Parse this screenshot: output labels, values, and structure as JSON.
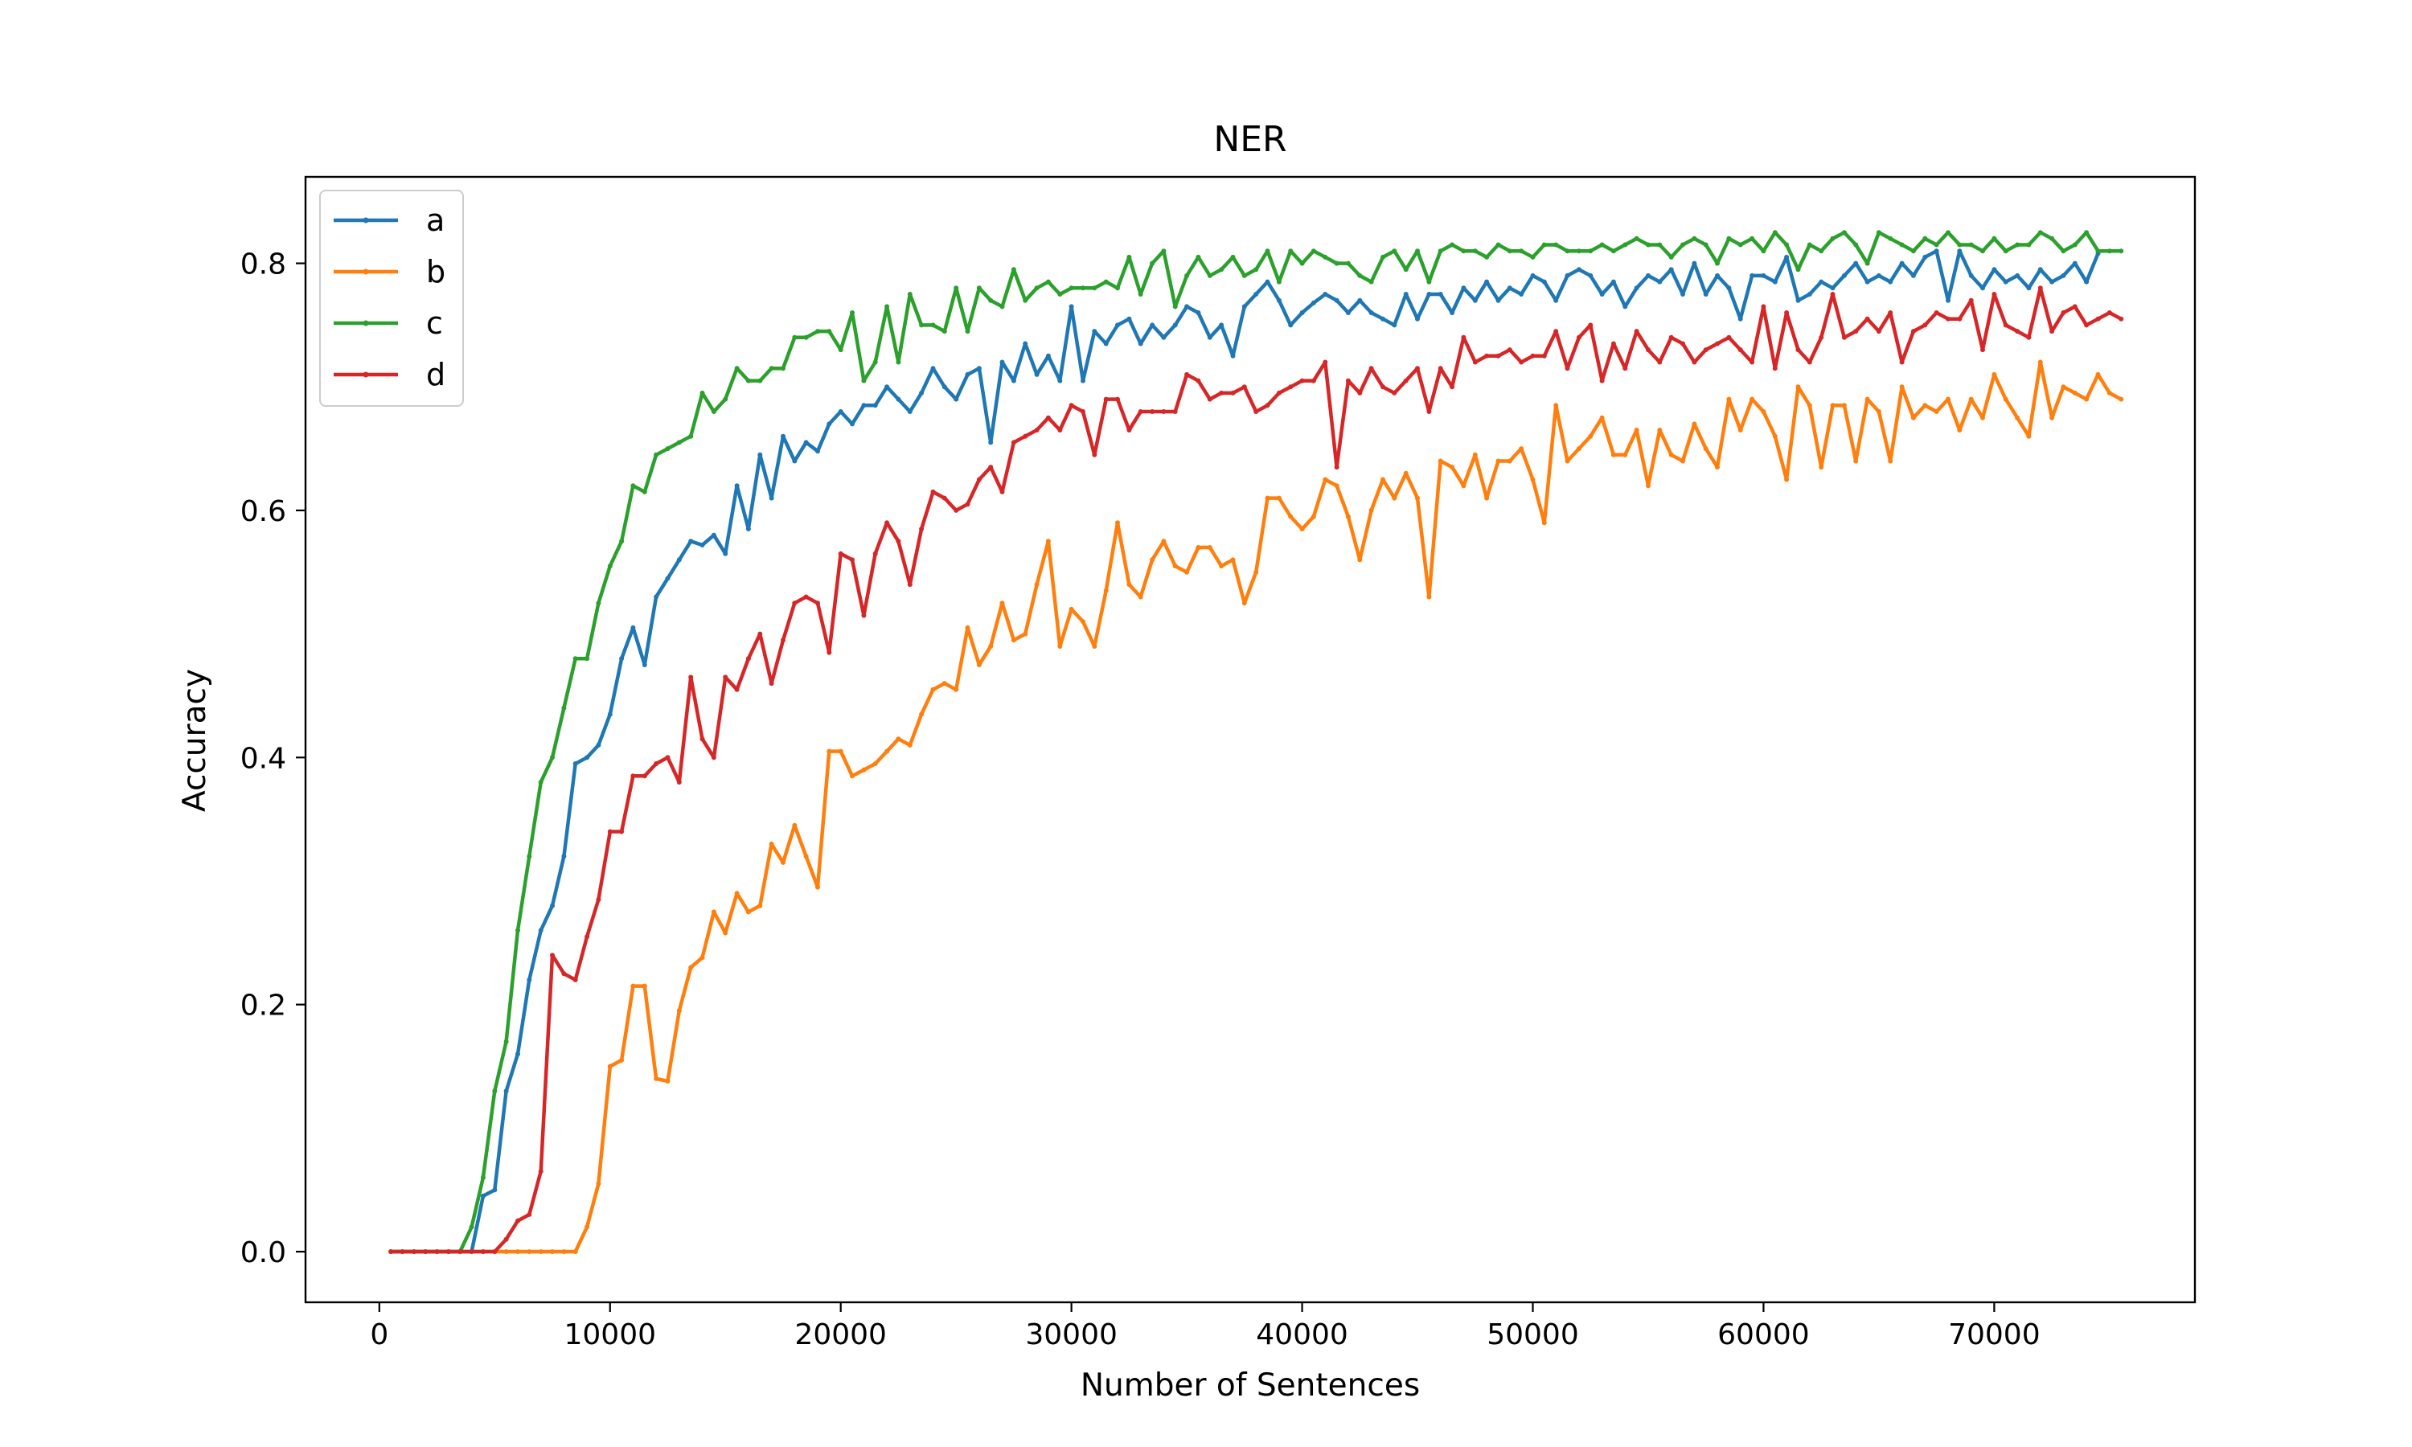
{
  "chart_data": {
    "type": "line",
    "title": "NER",
    "xlabel": "Number of Sentences",
    "ylabel": "Accuracy",
    "xlim": [
      -3200,
      78700
    ],
    "ylim": [
      -0.041,
      0.87
    ],
    "xticks": [
      0,
      10000,
      20000,
      30000,
      40000,
      50000,
      60000,
      70000
    ],
    "xtick_labels": [
      "0",
      "10000",
      "20000",
      "30000",
      "40000",
      "50000",
      "60000",
      "70000"
    ],
    "yticks": [
      0.0,
      0.2,
      0.4,
      0.6,
      0.8
    ],
    "ytick_labels": [
      "0.0",
      "0.2",
      "0.4",
      "0.6",
      "0.8"
    ],
    "grid": false,
    "legend_position": "top-left",
    "x_start": 500,
    "x_step": 500,
    "series": [
      {
        "name": "a",
        "color": "#1f77b4",
        "values": [
          0,
          0,
          0,
          0,
          0,
          0,
          0,
          0,
          0.045,
          0.05,
          0.13,
          0.16,
          0.22,
          0.26,
          0.28,
          0.32,
          0.395,
          0.4,
          0.41,
          0.435,
          0.48,
          0.505,
          0.475,
          0.53,
          0.545,
          0.56,
          0.575,
          0.572,
          0.58,
          0.565,
          0.62,
          0.585,
          0.645,
          0.61,
          0.66,
          0.64,
          0.655,
          0.648,
          0.67,
          0.68,
          0.67,
          0.685,
          0.685,
          0.7,
          0.69,
          0.68,
          0.695,
          0.715,
          0.7,
          0.69,
          0.71,
          0.715,
          0.655,
          0.72,
          0.705,
          0.735,
          0.71,
          0.725,
          0.705,
          0.765,
          0.705,
          0.745,
          0.735,
          0.75,
          0.755,
          0.735,
          0.75,
          0.74,
          0.75,
          0.765,
          0.76,
          0.74,
          0.75,
          0.725,
          0.765,
          0.775,
          0.785,
          0.77,
          0.75,
          0.76,
          0.768,
          0.775,
          0.77,
          0.76,
          0.77,
          0.76,
          0.755,
          0.75,
          0.775,
          0.755,
          0.775,
          0.775,
          0.76,
          0.78,
          0.77,
          0.785,
          0.77,
          0.78,
          0.775,
          0.79,
          0.785,
          0.77,
          0.79,
          0.795,
          0.79,
          0.775,
          0.785,
          0.765,
          0.78,
          0.79,
          0.785,
          0.795,
          0.775,
          0.8,
          0.775,
          0.79,
          0.78,
          0.755,
          0.79,
          0.79,
          0.785,
          0.805,
          0.77,
          0.775,
          0.785,
          0.78,
          0.79,
          0.8,
          0.785,
          0.79,
          0.785,
          0.8,
          0.79,
          0.805,
          0.81,
          0.77,
          0.81,
          0.79,
          0.78,
          0.795,
          0.785,
          0.79,
          0.78,
          0.795,
          0.785,
          0.79,
          0.8,
          0.785,
          0.808
        ]
      },
      {
        "name": "b",
        "color": "#ff7f0e",
        "values": [
          0,
          0,
          0,
          0,
          0,
          0,
          0,
          0,
          0,
          0,
          0,
          0,
          0,
          0,
          0,
          0,
          0,
          0.02,
          0.055,
          0.15,
          0.155,
          0.215,
          0.215,
          0.14,
          0.138,
          0.195,
          0.23,
          0.238,
          0.275,
          0.258,
          0.29,
          0.275,
          0.28,
          0.33,
          0.315,
          0.345,
          0.32,
          0.295,
          0.405,
          0.405,
          0.385,
          0.39,
          0.395,
          0.405,
          0.415,
          0.41,
          0.435,
          0.455,
          0.46,
          0.455,
          0.505,
          0.475,
          0.49,
          0.525,
          0.495,
          0.5,
          0.54,
          0.575,
          0.49,
          0.52,
          0.51,
          0.49,
          0.535,
          0.59,
          0.54,
          0.53,
          0.56,
          0.575,
          0.555,
          0.55,
          0.57,
          0.57,
          0.555,
          0.56,
          0.525,
          0.55,
          0.61,
          0.61,
          0.595,
          0.585,
          0.595,
          0.625,
          0.62,
          0.595,
          0.56,
          0.6,
          0.625,
          0.61,
          0.63,
          0.61,
          0.53,
          0.64,
          0.635,
          0.62,
          0.645,
          0.61,
          0.64,
          0.64,
          0.65,
          0.625,
          0.59,
          0.685,
          0.64,
          0.65,
          0.66,
          0.675,
          0.645,
          0.645,
          0.665,
          0.62,
          0.665,
          0.645,
          0.64,
          0.67,
          0.65,
          0.635,
          0.69,
          0.665,
          0.69,
          0.68,
          0.66,
          0.625,
          0.7,
          0.685,
          0.635,
          0.685,
          0.685,
          0.64,
          0.69,
          0.68,
          0.64,
          0.7,
          0.675,
          0.685,
          0.68,
          0.69,
          0.665,
          0.69,
          0.675,
          0.71,
          0.69,
          0.675,
          0.66,
          0.72,
          0.675,
          0.7,
          0.695,
          0.69,
          0.71,
          0.695,
          0.69
        ]
      },
      {
        "name": "c",
        "color": "#2ca02c",
        "values": [
          0,
          0,
          0,
          0,
          0,
          0,
          0,
          0.02,
          0.06,
          0.13,
          0.17,
          0.26,
          0.32,
          0.38,
          0.4,
          0.44,
          0.48,
          0.48,
          0.525,
          0.555,
          0.575,
          0.62,
          0.615,
          0.645,
          0.65,
          0.655,
          0.66,
          0.695,
          0.68,
          0.69,
          0.715,
          0.705,
          0.705,
          0.715,
          0.715,
          0.74,
          0.74,
          0.745,
          0.745,
          0.73,
          0.76,
          0.705,
          0.72,
          0.765,
          0.72,
          0.775,
          0.75,
          0.75,
          0.745,
          0.78,
          0.745,
          0.78,
          0.77,
          0.765,
          0.795,
          0.77,
          0.78,
          0.785,
          0.775,
          0.78,
          0.78,
          0.78,
          0.785,
          0.78,
          0.805,
          0.775,
          0.8,
          0.81,
          0.765,
          0.79,
          0.805,
          0.79,
          0.795,
          0.805,
          0.79,
          0.795,
          0.81,
          0.785,
          0.81,
          0.8,
          0.81,
          0.805,
          0.8,
          0.8,
          0.79,
          0.785,
          0.805,
          0.81,
          0.795,
          0.81,
          0.785,
          0.81,
          0.815,
          0.81,
          0.81,
          0.805,
          0.815,
          0.81,
          0.81,
          0.805,
          0.815,
          0.815,
          0.81,
          0.81,
          0.81,
          0.815,
          0.81,
          0.815,
          0.82,
          0.815,
          0.815,
          0.805,
          0.815,
          0.82,
          0.815,
          0.8,
          0.82,
          0.815,
          0.82,
          0.81,
          0.825,
          0.815,
          0.795,
          0.815,
          0.81,
          0.82,
          0.825,
          0.815,
          0.8,
          0.825,
          0.82,
          0.815,
          0.81,
          0.82,
          0.815,
          0.825,
          0.815,
          0.815,
          0.81,
          0.82,
          0.81,
          0.815,
          0.815,
          0.825,
          0.82,
          0.81,
          0.815,
          0.825,
          0.81,
          0.81,
          0.81
        ]
      },
      {
        "name": "d",
        "color": "#d62728",
        "values": [
          0,
          0,
          0,
          0,
          0,
          0,
          0,
          0,
          0,
          0,
          0.01,
          0.025,
          0.03,
          0.065,
          0.24,
          0.225,
          0.22,
          0.255,
          0.285,
          0.34,
          0.34,
          0.385,
          0.385,
          0.395,
          0.4,
          0.38,
          0.465,
          0.415,
          0.4,
          0.465,
          0.455,
          0.48,
          0.5,
          0.46,
          0.495,
          0.525,
          0.53,
          0.525,
          0.485,
          0.565,
          0.56,
          0.515,
          0.565,
          0.59,
          0.575,
          0.54,
          0.585,
          0.615,
          0.61,
          0.6,
          0.605,
          0.625,
          0.635,
          0.615,
          0.655,
          0.66,
          0.665,
          0.675,
          0.665,
          0.685,
          0.68,
          0.645,
          0.69,
          0.69,
          0.665,
          0.68,
          0.68,
          0.68,
          0.68,
          0.71,
          0.705,
          0.69,
          0.695,
          0.695,
          0.7,
          0.68,
          0.685,
          0.695,
          0.7,
          0.705,
          0.705,
          0.72,
          0.635,
          0.705,
          0.695,
          0.715,
          0.7,
          0.695,
          0.705,
          0.715,
          0.68,
          0.715,
          0.7,
          0.74,
          0.72,
          0.725,
          0.725,
          0.73,
          0.72,
          0.725,
          0.725,
          0.745,
          0.715,
          0.74,
          0.75,
          0.705,
          0.735,
          0.715,
          0.745,
          0.73,
          0.72,
          0.74,
          0.735,
          0.72,
          0.73,
          0.735,
          0.74,
          0.73,
          0.72,
          0.765,
          0.715,
          0.76,
          0.73,
          0.72,
          0.74,
          0.775,
          0.74,
          0.745,
          0.755,
          0.745,
          0.76,
          0.72,
          0.745,
          0.75,
          0.76,
          0.755,
          0.755,
          0.77,
          0.73,
          0.775,
          0.75,
          0.745,
          0.74,
          0.78,
          0.745,
          0.76,
          0.765,
          0.75,
          0.755,
          0.76,
          0.755
        ]
      }
    ]
  }
}
